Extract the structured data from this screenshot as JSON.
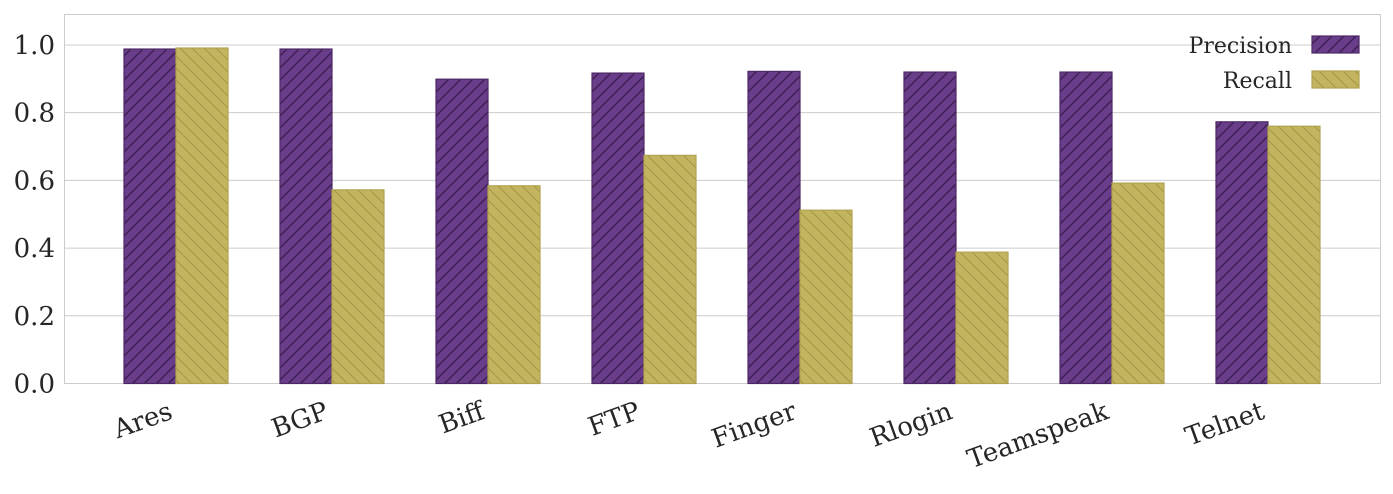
{
  "chart_data": {
    "type": "bar",
    "categories": [
      "Ares",
      "BGP",
      "Biff",
      "FTP",
      "Finger",
      "Rlogin",
      "Teamspeak",
      "Telnet"
    ],
    "series": [
      {
        "name": "Precision",
        "values": [
          0.988,
          0.988,
          0.899,
          0.917,
          0.922,
          0.92,
          0.92,
          0.773
        ],
        "color": "#6a3d8a",
        "hatch": "forward-diagonal"
      },
      {
        "name": "Recall",
        "values": [
          0.991,
          0.572,
          0.584,
          0.674,
          0.512,
          0.388,
          0.592,
          0.76
        ],
        "color": "#c3b560",
        "hatch": "backward-diagonal"
      }
    ],
    "yticks": [
      "0.0",
      "0.2",
      "0.4",
      "0.6",
      "0.8",
      "1.0"
    ],
    "ylim": [
      0,
      1.09
    ],
    "grid": true,
    "legend_position": "top-right",
    "xlabel": "",
    "ylabel": "",
    "title": ""
  }
}
